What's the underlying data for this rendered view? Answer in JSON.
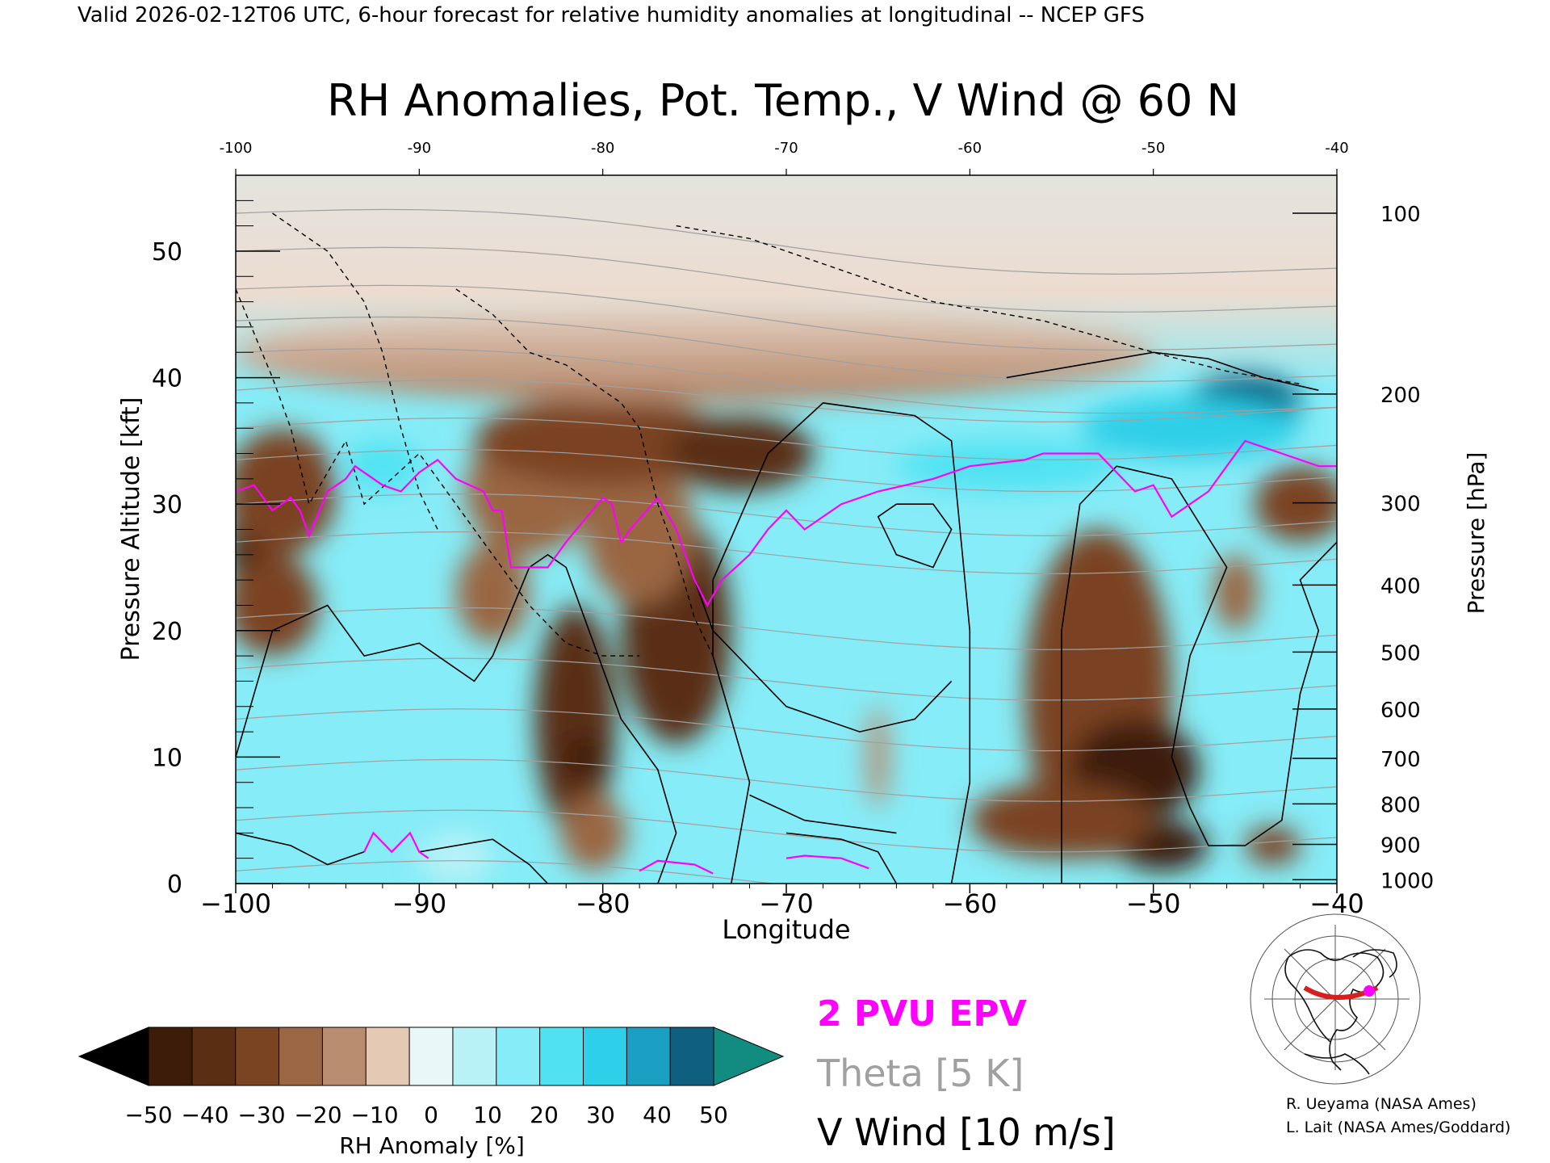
{
  "header": "Valid 2026-02-12T06 UTC, 6-hour forecast for relative humidity anomalies at longitudinal -- NCEP GFS",
  "chart_data": {
    "type": "heatmap",
    "title": "RH Anomalies, Pot. Temp., V Wind @ 60 N",
    "xlabel": "Longitude",
    "ylabel": "Pressure Altitude [kft]",
    "y2label": "Pressure [hPa]",
    "xlim": [
      -100,
      -40
    ],
    "ylim": [
      0,
      56
    ],
    "xticks": [
      -100,
      -90,
      -80,
      -70,
      -60,
      -50,
      -40
    ],
    "xtick_labels": [
      "−100",
      "−90",
      "−80",
      "−70",
      "−60",
      "−50",
      "−40"
    ],
    "top_xtick_labels": [
      "-100",
      "-90",
      "-80",
      "-70",
      "-60",
      "-50",
      "-40"
    ],
    "yticks": [
      0,
      10,
      20,
      30,
      40,
      50
    ],
    "pressure_ticks": [
      {
        "p": 100,
        "kft": 53
      },
      {
        "p": 200,
        "kft": 38.7
      },
      {
        "p": 300,
        "kft": 30.1
      },
      {
        "p": 400,
        "kft": 23.6
      },
      {
        "p": 500,
        "kft": 18.3
      },
      {
        "p": 600,
        "kft": 13.8
      },
      {
        "p": 700,
        "kft": 9.9
      },
      {
        "p": 800,
        "kft": 6.3
      },
      {
        "p": 900,
        "kft": 3.1
      },
      {
        "p": 1000,
        "kft": 0.3
      }
    ],
    "rh_anomaly_blobs": [
      {
        "lon": -98.8,
        "kft": 27,
        "rlon": 1.6,
        "rkft": 6,
        "value": -50
      },
      {
        "lon": -97.5,
        "kft": 31,
        "rlon": 3,
        "rkft": 5,
        "value": -35
      },
      {
        "lon": -98,
        "kft": 22,
        "rlon": 2.5,
        "rkft": 4,
        "value": -30
      },
      {
        "lon": -86,
        "kft": 23,
        "rlon": 2,
        "rkft": 4,
        "value": -25
      },
      {
        "lon": -81.5,
        "kft": 13,
        "rlon": 2.2,
        "rkft": 9,
        "value": -40
      },
      {
        "lon": -81,
        "kft": 10,
        "rlon": 1.2,
        "rkft": 1.5,
        "value": -50
      },
      {
        "lon": -80.5,
        "kft": 4,
        "rlon": 1.8,
        "rkft": 3,
        "value": -25
      },
      {
        "lon": -76,
        "kft": 20,
        "rlon": 3,
        "rkft": 9,
        "value": -40
      },
      {
        "lon": -78,
        "kft": 28,
        "rlon": 3,
        "rkft": 6,
        "value": -20
      },
      {
        "lon": -84,
        "kft": 31,
        "rlon": 3.5,
        "rkft": 5,
        "value": -25
      },
      {
        "lon": -80,
        "kft": 35,
        "rlon": 7,
        "rkft": 3.5,
        "value": -35
      },
      {
        "lon": -72.5,
        "kft": 34,
        "rlon": 4,
        "rkft": 3,
        "value": -40
      },
      {
        "lon": -65,
        "kft": 10,
        "rlon": 0.6,
        "rkft": 4,
        "value": -15
      },
      {
        "lon": -53,
        "kft": 15,
        "rlon": 4,
        "rkft": 13,
        "value": -35
      },
      {
        "lon": -51,
        "kft": 9,
        "rlon": 3.5,
        "rkft": 4,
        "value": -50
      },
      {
        "lon": -49.5,
        "kft": 3,
        "rlon": 2.5,
        "rkft": 2,
        "value": -50
      },
      {
        "lon": -55,
        "kft": 5,
        "rlon": 5,
        "rkft": 3,
        "value": -30
      },
      {
        "lon": -45.5,
        "kft": 23,
        "rlon": 1.2,
        "rkft": 3,
        "value": -25
      },
      {
        "lon": -42,
        "kft": 30,
        "rlon": 2.5,
        "rkft": 3,
        "value": -30
      },
      {
        "lon": -43.5,
        "kft": 3,
        "rlon": 1.5,
        "rkft": 1.5,
        "value": -35
      },
      {
        "lon": -75,
        "kft": 42,
        "rlon": 25,
        "rkft": 4,
        "value": -15
      },
      {
        "lon": -92,
        "kft": 33,
        "rlon": 2,
        "rkft": 2,
        "value": 25
      },
      {
        "lon": -45,
        "kft": 38,
        "rlon": 3,
        "rkft": 2.5,
        "value": 45
      },
      {
        "lon": -48,
        "kft": 36,
        "rlon": 6,
        "rkft": 2.5,
        "value": 30
      },
      {
        "lon": -58,
        "kft": 33,
        "rlon": 6,
        "rkft": 2,
        "value": 22
      },
      {
        "lon": -88,
        "kft": 2,
        "rlon": 2,
        "rkft": 2,
        "value": 10
      }
    ],
    "upper_neutral_region": {
      "kft_above": 45,
      "value": 0
    },
    "epv_2pvu_line": [
      [
        -100,
        31
      ],
      [
        -99,
        31.5
      ],
      [
        -98,
        29.5
      ],
      [
        -97,
        30.5
      ],
      [
        -96.5,
        29.5
      ],
      [
        -96,
        27.5
      ],
      [
        -95,
        31
      ],
      [
        -94,
        32
      ],
      [
        -93.5,
        33
      ],
      [
        -92,
        31.5
      ],
      [
        -91,
        31
      ],
      [
        -90,
        32.5
      ],
      [
        -89,
        33.5
      ],
      [
        -88,
        32
      ],
      [
        -86.5,
        31
      ],
      [
        -86,
        29.5
      ],
      [
        -85.5,
        29.5
      ],
      [
        -85,
        25
      ],
      [
        -83,
        25
      ],
      [
        -82,
        27
      ],
      [
        -80,
        30.5
      ],
      [
        -79.5,
        30
      ],
      [
        -79,
        27
      ],
      [
        -78.5,
        28
      ],
      [
        -77,
        30.5
      ],
      [
        -76,
        28
      ],
      [
        -75,
        24
      ],
      [
        -74.3,
        22
      ],
      [
        -73.5,
        24
      ],
      [
        -72,
        26
      ],
      [
        -71,
        28
      ],
      [
        -70,
        29.5
      ],
      [
        -69,
        28
      ],
      [
        -67,
        30
      ],
      [
        -65,
        31
      ],
      [
        -62,
        32
      ],
      [
        -60,
        33
      ],
      [
        -57,
        33.5
      ],
      [
        -56,
        34
      ],
      [
        -53,
        34
      ],
      [
        -52,
        32.5
      ],
      [
        -51,
        31
      ],
      [
        -50,
        31.5
      ],
      [
        -49,
        29
      ],
      [
        -48,
        30
      ],
      [
        -47,
        31
      ],
      [
        -46,
        33
      ],
      [
        -45,
        35
      ],
      [
        -43,
        34
      ],
      [
        -41,
        33
      ],
      [
        -40,
        33
      ]
    ],
    "epv_2pvu_low": [
      [
        [
          -93,
          2.5
        ],
        [
          -92.5,
          4
        ],
        [
          -91.5,
          2.5
        ],
        [
          -90.5,
          4
        ],
        [
          -90,
          2.5
        ],
        [
          -89.5,
          2
        ]
      ],
      [
        [
          -78,
          1
        ],
        [
          -77,
          1.8
        ],
        [
          -75,
          1.5
        ],
        [
          -74,
          0.8
        ]
      ],
      [
        [
          -70,
          2
        ],
        [
          -69,
          2.2
        ],
        [
          -67,
          2
        ],
        [
          -65.5,
          1.2
        ]
      ]
    ],
    "theta_levels_K": [
      270,
      280,
      290,
      300,
      310,
      320,
      330,
      340,
      350,
      360,
      370,
      380,
      390,
      400,
      410,
      420
    ],
    "theta_level_heights_kft": [
      1,
      5,
      9,
      13,
      17,
      21,
      27,
      30,
      33.5,
      36,
      39,
      42,
      44.5,
      47,
      50,
      53
    ],
    "v_wind_zero_contours": [
      [
        [
          -100,
          10
        ],
        [
          -98,
          20
        ],
        [
          -95,
          22
        ],
        [
          -93,
          18
        ],
        [
          -90,
          19
        ],
        [
          -88,
          17
        ],
        [
          -87,
          16
        ],
        [
          -86,
          18
        ],
        [
          -84,
          25
        ],
        [
          -83,
          26
        ],
        [
          -82,
          25
        ],
        [
          -80,
          17
        ],
        [
          -79,
          13
        ],
        [
          -77,
          9
        ],
        [
          -76,
          4
        ],
        [
          -77,
          0
        ]
      ],
      [
        [
          -73,
          0
        ],
        [
          -72,
          8
        ],
        [
          -74,
          18
        ],
        [
          -74,
          24
        ],
        [
          -71,
          34
        ],
        [
          -68,
          38
        ],
        [
          -63,
          37
        ],
        [
          -61,
          35
        ],
        [
          -60,
          20
        ],
        [
          -60,
          8
        ],
        [
          -61,
          0
        ]
      ],
      [
        [
          -55,
          0
        ],
        [
          -55,
          20
        ],
        [
          -54,
          30
        ],
        [
          -52,
          33
        ],
        [
          -49,
          32
        ],
        [
          -46,
          25
        ],
        [
          -48,
          18
        ],
        [
          -49,
          10
        ],
        [
          -48,
          6
        ],
        [
          -47,
          3
        ],
        [
          -45,
          3
        ],
        [
          -43,
          5
        ],
        [
          -42,
          15
        ],
        [
          -41,
          20
        ],
        [
          -42,
          24
        ],
        [
          -40,
          27
        ]
      ],
      [
        [
          -100,
          4
        ],
        [
          -97,
          3
        ],
        [
          -95,
          1.5
        ],
        [
          -93,
          2.5
        ]
      ],
      [
        [
          -90,
          2.5
        ],
        [
          -86,
          3.5
        ],
        [
          -84,
          1.5
        ],
        [
          -83,
          0
        ]
      ],
      [
        [
          -64,
          0
        ],
        [
          -65,
          2.5
        ],
        [
          -67,
          3.5
        ],
        [
          -70,
          4
        ]
      ],
      [
        [
          -72,
          7
        ],
        [
          -69,
          5
        ],
        [
          -64,
          4
        ]
      ],
      [
        [
          -58,
          40
        ],
        [
          -54,
          41
        ],
        [
          -50,
          42
        ],
        [
          -47,
          41.5
        ],
        [
          -44,
          40
        ],
        [
          -41,
          39
        ]
      ]
    ],
    "v_wind_pos10_contours": [
      [
        [
          -100,
          47
        ],
        [
          -98,
          40
        ],
        [
          -97,
          36
        ],
        [
          -96,
          30
        ],
        [
          -94,
          35
        ],
        [
          -93,
          30
        ],
        [
          -90,
          34
        ],
        [
          -88,
          30
        ],
        [
          -87,
          28
        ],
        [
          -84,
          22
        ],
        [
          -82,
          19
        ],
        [
          -80,
          18
        ],
        [
          -78,
          18
        ]
      ],
      [
        [
          -98,
          53
        ],
        [
          -95,
          50
        ],
        [
          -93,
          46
        ],
        [
          -92,
          42
        ],
        [
          -91,
          36
        ],
        [
          -90,
          31
        ],
        [
          -89,
          28
        ]
      ],
      [
        [
          -88,
          47
        ],
        [
          -86,
          45
        ],
        [
          -84,
          42
        ],
        [
          -82,
          41
        ],
        [
          -80,
          39
        ],
        [
          -79,
          38
        ],
        [
          -78,
          36
        ],
        [
          -77,
          30
        ],
        [
          -76,
          26
        ],
        [
          -75,
          21
        ],
        [
          -74,
          18
        ]
      ],
      [
        [
          -76,
          52
        ],
        [
          -72,
          51
        ],
        [
          -66,
          48
        ],
        [
          -62,
          46
        ],
        [
          -56,
          44.5
        ],
        [
          -50,
          42
        ],
        [
          -46,
          40.5
        ],
        [
          -42,
          39.5
        ]
      ]
    ],
    "v_wind_neg10_contours": [
      [
        [
          -76,
          28
        ],
        [
          -74,
          20
        ],
        [
          -70,
          14
        ],
        [
          -66,
          12
        ],
        [
          -63,
          13
        ],
        [
          -61,
          16
        ]
      ],
      [
        [
          -64,
          30
        ],
        [
          -62,
          30
        ],
        [
          -61,
          28
        ],
        [
          -62,
          25
        ],
        [
          -64,
          26
        ],
        [
          -65,
          29
        ],
        [
          -64,
          30
        ]
      ]
    ],
    "colorbar": {
      "label": "RH Anomaly [%]",
      "tick_labels": [
        "−50",
        "−40",
        "−30",
        "−20",
        "−10",
        "0",
        "10",
        "20",
        "30",
        "40",
        "50"
      ],
      "colors": [
        "#000000",
        "#3d1d0a",
        "#5a2e12",
        "#7a4322",
        "#9a6643",
        "#b88c6f",
        "#e4c9b4",
        "#e9f7f8",
        "#b8f2f7",
        "#86ecf7",
        "#50e2f2",
        "#2ecfe8",
        "#1a9fc2",
        "#0f5f80",
        "#128c80"
      ]
    },
    "legend": [
      {
        "text": "2 PVU EPV",
        "color": "#ff00ff"
      },
      {
        "text": "Theta [5 K]",
        "color": "#a0a0a0"
      },
      {
        "text": "V Wind [10 m/s]",
        "color": "#000000"
      }
    ]
  },
  "credits": [
    "R. Ueyama (NASA Ames)",
    "L. Lait (NASA Ames/Goddard)"
  ],
  "colors": {
    "epv_line": "#ff00ff",
    "theta_line": "#a0a0a0",
    "wind_line": "#000000",
    "locator_arc": "#d62020",
    "locator_dot": "#ff00ff"
  },
  "locator_map": {
    "label": "",
    "section_lat": 60
  }
}
